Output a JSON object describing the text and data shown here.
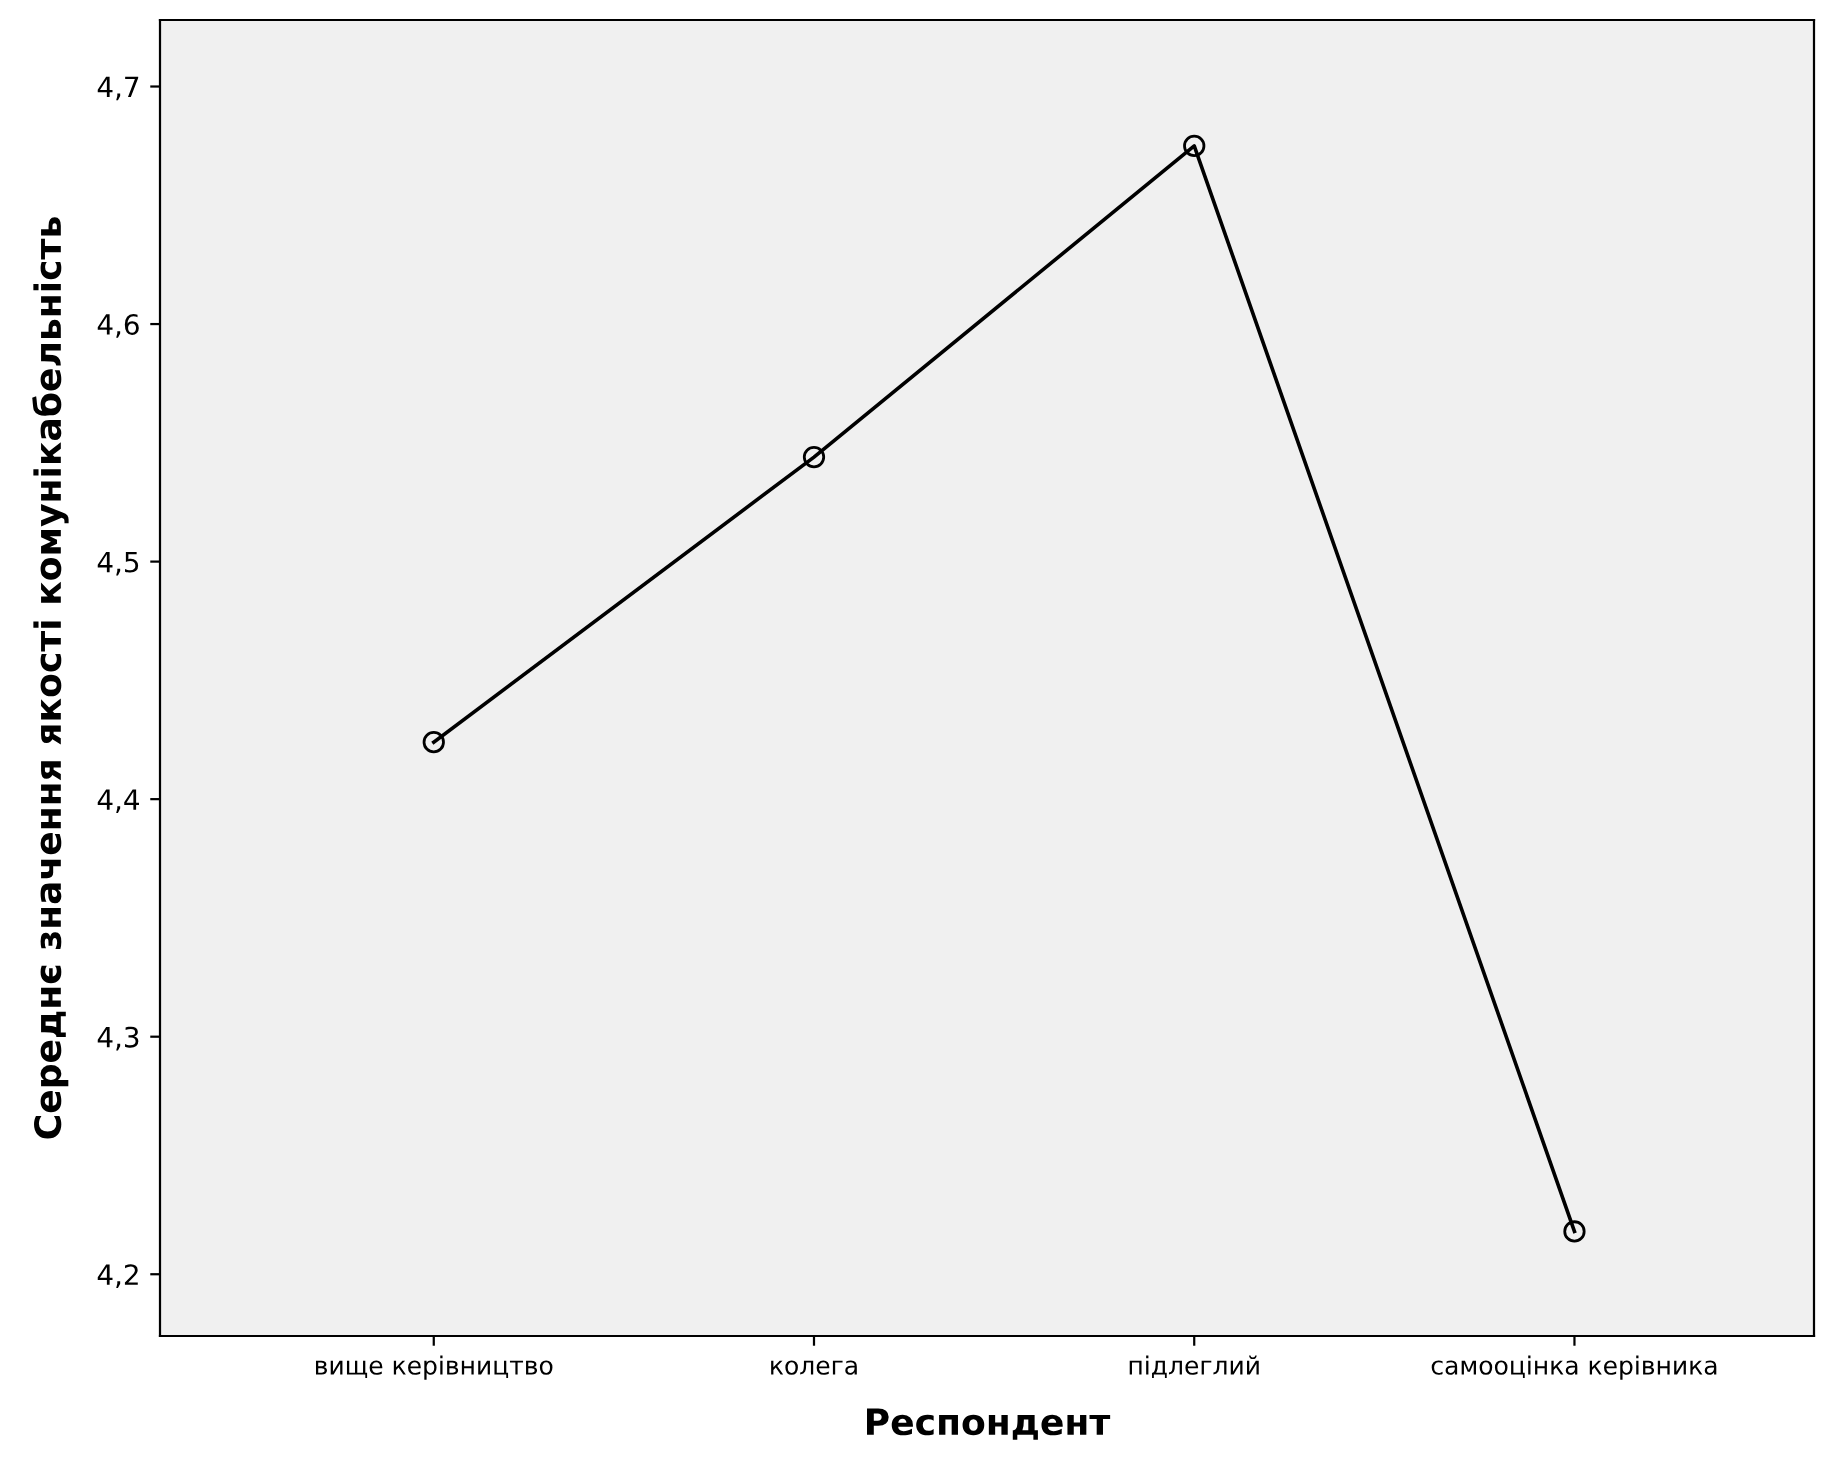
{
  "chart_data": {
    "type": "line",
    "xlabel": "Респондент",
    "ylabel": "Середнє значення якості комунікабельність",
    "categories": [
      "вище керівництво",
      "колега",
      "підлеглий",
      "самооцінка керівника"
    ],
    "series": [
      {
        "color": "#000000",
        "values": [
          4.424,
          4.544,
          4.675,
          4.218
        ]
      }
    ],
    "ylim": [
      4.174,
      4.728
    ],
    "yticks": [
      {
        "value": 4.2,
        "label": "4,2"
      },
      {
        "value": 4.3,
        "label": "4,3"
      },
      {
        "value": 4.4,
        "label": "4,4"
      },
      {
        "value": 4.5,
        "label": "4,5"
      },
      {
        "value": 4.6,
        "label": "4,6"
      },
      {
        "value": 4.7,
        "label": "4,7"
      }
    ],
    "marker": "circle",
    "line_style": "solid",
    "grid": false,
    "legend": false
  }
}
